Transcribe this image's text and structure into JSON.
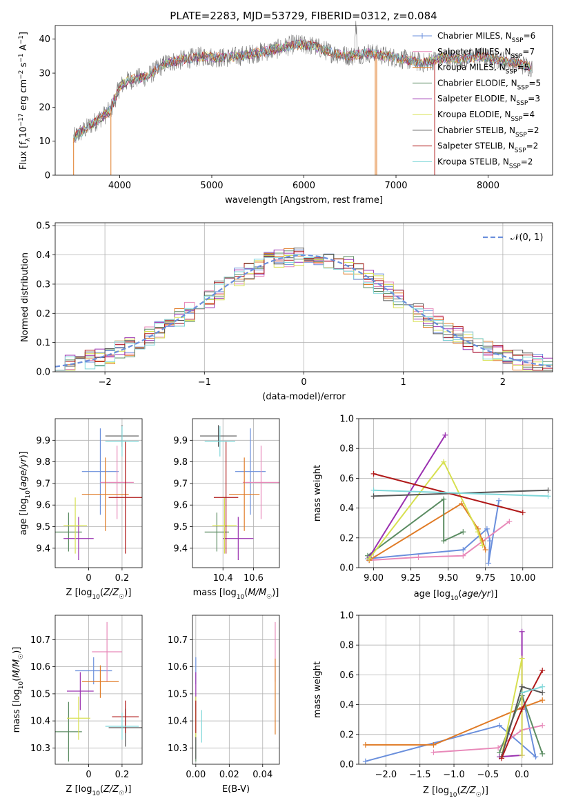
{
  "figure_title": "PLATE=2283, MJD=53729, FIBERID=0312, z=0.084",
  "colors": {
    "Chabrier MILES": "#6a8fdc",
    "Salpeter MILES": "#e889b9",
    "Kroupa MILES": "#e07b26",
    "Chabrier ELODIE": "#5b8c62",
    "Salpeter ELODIE": "#9a30b0",
    "Kroupa ELODIE": "#d7e050",
    "Chabrier STELIB": "#555555",
    "Salpeter STELIB": "#b01a1a",
    "Kroupa STELIB": "#7fd7d9"
  },
  "chart_data": [
    {
      "id": "spectrum",
      "type": "line",
      "title": "PLATE=2283, MJD=53729, FIBERID=0312, z=0.084",
      "xlabel": "wavelength [Angstrom, rest frame]",
      "ylabel": "Flux [f_λ 10^-17 erg cm^-2 s^-1 A^-1]",
      "xlim": [
        3300,
        8700
      ],
      "ylim": [
        0,
        44
      ],
      "xticks": [
        4000,
        5000,
        6000,
        7000,
        8000
      ],
      "yticks": [
        0,
        10,
        20,
        30,
        40
      ],
      "legend_position": "top-right",
      "continuum": {
        "x": [
          3500,
          3700,
          3900,
          4000,
          4100,
          4300,
          4500,
          4700,
          4900,
          5100,
          5300,
          5500,
          5700,
          5900,
          6100,
          6300,
          6500,
          6700,
          6900,
          7100,
          7300,
          7500,
          7700,
          7900,
          8100,
          8300,
          8500
        ],
        "y": [
          11,
          15,
          19,
          26,
          28,
          29,
          33,
          34,
          35,
          34.5,
          35,
          36,
          37,
          38.5,
          38,
          36,
          35,
          36,
          35,
          34,
          33,
          34.5,
          34,
          35,
          34,
          33,
          31.5
        ]
      },
      "series": [
        {
          "name": "Chabrier MILES, N_SSP=6"
        },
        {
          "name": "Salpeter MILES, N_SSP=7"
        },
        {
          "name": "Kroupa MILES, N_SSP=5"
        },
        {
          "name": "Chabrier ELODIE, N_SSP=5"
        },
        {
          "name": "Salpeter ELODIE, N_SSP=3"
        },
        {
          "name": "Kroupa ELODIE, N_SSP=4"
        },
        {
          "name": "Chabrier STELIB, N_SSP=2"
        },
        {
          "name": "Salpeter STELIB, N_SSP=2"
        },
        {
          "name": "Kroupa STELIB, N_SSP=2"
        }
      ],
      "legend_labels": [
        {
          "base": "Chabrier MILES, N",
          "sub": "SSP",
          "tail": "=6"
        },
        {
          "base": "Salpeter MILES, N",
          "sub": "SSP",
          "tail": "=7"
        },
        {
          "base": "Kroupa MILES, N",
          "sub": "SSP",
          "tail": "=5"
        },
        {
          "base": "Chabrier ELODIE, N",
          "sub": "SSP",
          "tail": "=5"
        },
        {
          "base": "Salpeter ELODIE, N",
          "sub": "SSP",
          "tail": "=3"
        },
        {
          "base": "Kroupa ELODIE, N",
          "sub": "SSP",
          "tail": "=4"
        },
        {
          "base": "Chabrier STELIB, N",
          "sub": "SSP",
          "tail": "=2"
        },
        {
          "base": "Salpeter STELIB, N",
          "sub": "SSP",
          "tail": "=2"
        },
        {
          "base": "Kroupa STELIB, N",
          "sub": "SSP",
          "tail": "=2"
        }
      ]
    },
    {
      "id": "residuals",
      "type": "histogram",
      "xlabel": "(data-model)/error",
      "ylabel": "Normed distribution",
      "xlim": [
        -2.5,
        2.5
      ],
      "ylim": [
        0,
        0.51
      ],
      "xticks": [
        -2,
        -1,
        0,
        1,
        2
      ],
      "yticks": [
        0.0,
        0.1,
        0.2,
        0.3,
        0.4,
        0.5
      ],
      "ytick_labels": [
        "0.0",
        "0.1",
        "0.2",
        "0.3",
        "0.4",
        "0.5"
      ],
      "grid": true,
      "bin_width": 0.1,
      "reference": {
        "name": "N(0,1)",
        "label": "𝒩(0, 1)",
        "style": "dashed",
        "color": "#6a8fdc"
      },
      "legend_position": "top-right"
    },
    {
      "id": "age_vs_Z",
      "type": "scatter",
      "xlabel": "Z [log10(Z/Z☉)]",
      "ylabel": "age [log10(age/yr)]",
      "xlim": [
        -0.2,
        0.32
      ],
      "ylim": [
        9.31,
        10.0
      ],
      "xticks": [
        0.0,
        0.2
      ],
      "yticks": [
        9.4,
        9.5,
        9.6,
        9.7,
        9.8,
        9.9
      ],
      "grid": true,
      "points": [
        {
          "series": "Chabrier MILES",
          "x": 0.07,
          "xerr": 0.11,
          "y": 9.755,
          "yerr": 0.2
        },
        {
          "series": "Salpeter MILES",
          "x": 0.17,
          "xerr": 0.1,
          "y": 9.705,
          "yerr": 0.17
        },
        {
          "series": "Kroupa MILES",
          "x": 0.1,
          "xerr": 0.14,
          "y": 9.65,
          "yerr": 0.17
        },
        {
          "series": "Chabrier ELODIE",
          "x": -0.12,
          "xerr": 0.08,
          "y": 9.475,
          "yerr": 0.09
        },
        {
          "series": "Salpeter ELODIE",
          "x": -0.06,
          "xerr": 0.09,
          "y": 9.445,
          "yerr": 0.1
        },
        {
          "series": "Kroupa ELODIE",
          "x": -0.08,
          "xerr": 0.07,
          "y": 9.505,
          "yerr": 0.13
        },
        {
          "series": "Chabrier STELIB",
          "x": 0.2,
          "xerr": 0.1,
          "y": 9.92,
          "yerr": 0.05
        },
        {
          "series": "Salpeter STELIB",
          "x": 0.22,
          "xerr": 0.1,
          "y": 9.635,
          "yerr": 0.26
        },
        {
          "series": "Kroupa STELIB",
          "x": 0.2,
          "xerr": 0.1,
          "y": 9.895,
          "yerr": 0.07
        }
      ]
    },
    {
      "id": "age_vs_mass",
      "type": "scatter",
      "xlabel": "mass [log10(M/M☉)]",
      "ylabel": "",
      "xlim": [
        10.2,
        10.77
      ],
      "ylim": [
        9.31,
        10.0
      ],
      "xticks": [
        10.4,
        10.6
      ],
      "yticks": [
        9.4,
        9.5,
        9.6,
        9.7,
        9.8,
        9.9
      ],
      "grid": true,
      "points": [
        {
          "series": "Chabrier MILES",
          "x": 10.58,
          "xerr": 0.1,
          "y": 9.755,
          "yerr": 0.2
        },
        {
          "series": "Salpeter MILES",
          "x": 10.65,
          "xerr": 0.12,
          "y": 9.705,
          "yerr": 0.17
        },
        {
          "series": "Kroupa MILES",
          "x": 10.54,
          "xerr": 0.1,
          "y": 9.65,
          "yerr": 0.17
        },
        {
          "series": "Chabrier ELODIE",
          "x": 10.36,
          "xerr": 0.08,
          "y": 9.475,
          "yerr": 0.09
        },
        {
          "series": "Salpeter ELODIE",
          "x": 10.5,
          "xerr": 0.1,
          "y": 9.445,
          "yerr": 0.1
        },
        {
          "series": "Kroupa ELODIE",
          "x": 10.41,
          "xerr": 0.08,
          "y": 9.505,
          "yerr": 0.13
        },
        {
          "series": "Chabrier STELIB",
          "x": 10.37,
          "xerr": 0.12,
          "y": 9.92,
          "yerr": 0.05
        },
        {
          "series": "Salpeter STELIB",
          "x": 10.42,
          "xerr": 0.08,
          "y": 9.635,
          "yerr": 0.26
        },
        {
          "series": "Kroupa STELIB",
          "x": 10.38,
          "xerr": 0.1,
          "y": 9.895,
          "yerr": 0.07
        }
      ]
    },
    {
      "id": "mass_weight_vs_age",
      "type": "line",
      "xlabel": "age [log10(age/yr)]",
      "ylabel": "mass weight",
      "xlim": [
        8.9,
        10.2
      ],
      "ylim": [
        0,
        1
      ],
      "xticks": [
        9.0,
        9.25,
        9.5,
        9.75,
        10.0
      ],
      "xtick_labels": [
        "9.00",
        "9.25",
        "9.50",
        "9.75",
        "10.00"
      ],
      "yticks": [
        0.0,
        0.2,
        0.4,
        0.6,
        0.8,
        1.0
      ],
      "ytick_labels": [
        "0.0",
        "0.2",
        "0.4",
        "0.6",
        "0.8",
        "1.0"
      ],
      "grid": true,
      "series": [
        {
          "series": "Chabrier MILES",
          "x": [
            8.96,
            9.6,
            9.76,
            9.78,
            9.77,
            9.84
          ],
          "y": [
            0.06,
            0.12,
            0.26,
            0.18,
            0.03,
            0.45
          ]
        },
        {
          "series": "Salpeter MILES",
          "x": [
            8.97,
            9.3,
            9.6,
            9.91
          ],
          "y": [
            0.05,
            0.07,
            0.08,
            0.31
          ]
        },
        {
          "series": "Kroupa MILES",
          "x": [
            8.97,
            9.59,
            9.7,
            9.75,
            9.73
          ],
          "y": [
            0.05,
            0.43,
            0.26,
            0.12,
            0.18
          ]
        },
        {
          "series": "Chabrier ELODIE",
          "x": [
            8.96,
            9.47,
            9.47,
            9.6
          ],
          "y": [
            0.08,
            0.46,
            0.18,
            0.24
          ]
        },
        {
          "series": "Salpeter ELODIE",
          "x": [
            8.97,
            9.48
          ],
          "y": [
            0.07,
            0.89
          ]
        },
        {
          "series": "Kroupa ELODIE",
          "x": [
            8.97,
            9.47,
            9.7,
            9.73
          ],
          "y": [
            0.06,
            0.71,
            0.24,
            0.15
          ]
        },
        {
          "series": "Chabrier STELIB",
          "x": [
            9.0,
            10.17
          ],
          "y": [
            0.48,
            0.52
          ]
        },
        {
          "series": "Salpeter STELIB",
          "x": [
            9.0,
            10.0
          ],
          "y": [
            0.63,
            0.37
          ]
        },
        {
          "series": "Kroupa STELIB",
          "x": [
            9.0,
            10.17
          ],
          "y": [
            0.52,
            0.48
          ]
        }
      ]
    },
    {
      "id": "mass_vs_Z",
      "type": "scatter",
      "xlabel": "Z [log10(Z/Z☉)]",
      "ylabel": "mass [log10(M/M☉)]",
      "xlim": [
        -0.2,
        0.32
      ],
      "ylim": [
        10.24,
        10.79
      ],
      "xticks": [
        0.0,
        0.2
      ],
      "yticks": [
        10.3,
        10.4,
        10.5,
        10.6,
        10.7
      ],
      "grid": true,
      "points": [
        {
          "series": "Chabrier MILES",
          "x": 0.03,
          "xerr": 0.11,
          "y": 10.585,
          "yerr": 0.05
        },
        {
          "series": "Salpeter MILES",
          "x": 0.11,
          "xerr": 0.09,
          "y": 10.655,
          "yerr": 0.11
        },
        {
          "series": "Kroupa MILES",
          "x": 0.07,
          "xerr": 0.11,
          "y": 10.545,
          "yerr": 0.06
        },
        {
          "series": "Chabrier ELODIE",
          "x": -0.12,
          "xerr": 0.08,
          "y": 10.36,
          "yerr": 0.11
        },
        {
          "series": "Salpeter ELODIE",
          "x": -0.05,
          "xerr": 0.08,
          "y": 10.51,
          "yerr": 0.07
        },
        {
          "series": "Kroupa ELODIE",
          "x": -0.06,
          "xerr": 0.07,
          "y": 10.41,
          "yerr": 0.08
        },
        {
          "series": "Chabrier STELIB",
          "x": 0.22,
          "xerr": 0.1,
          "y": 10.375,
          "yerr": 0.07
        },
        {
          "series": "Salpeter STELIB",
          "x": 0.22,
          "xerr": 0.08,
          "y": 10.415,
          "yerr": 0.06
        },
        {
          "series": "Kroupa STELIB",
          "x": 0.2,
          "xerr": 0.1,
          "y": 10.38,
          "yerr": 0.05
        }
      ]
    },
    {
      "id": "mass_vs_ebv",
      "type": "scatter",
      "xlabel": "E(B-V)",
      "ylabel": "",
      "xlim": [
        -0.002,
        0.05
      ],
      "ylim": [
        10.24,
        10.79
      ],
      "xticks": [
        0.0,
        0.02,
        0.04
      ],
      "xtick_labels": [
        "0.00",
        "0.02",
        "0.04"
      ],
      "yticks": [
        10.3,
        10.4,
        10.5,
        10.6,
        10.7
      ],
      "grid": true,
      "points": [
        {
          "series": "Chabrier MILES",
          "x": 0.0,
          "xerr": 0.0,
          "y": 10.585,
          "yerr": 0.05
        },
        {
          "series": "Salpeter MILES",
          "x": 0.0475,
          "xerr": 0.0,
          "y": 10.655,
          "yerr": 0.11
        },
        {
          "series": "Kroupa MILES",
          "x": 0.0475,
          "xerr": 0.0,
          "y": 10.49,
          "yerr": 0.14
        },
        {
          "series": "Chabrier ELODIE",
          "x": 0.0,
          "xerr": 0.0,
          "y": 10.36,
          "yerr": 0.11
        },
        {
          "series": "Salpeter ELODIE",
          "x": 0.0,
          "xerr": 0.0,
          "y": 10.51,
          "yerr": 0.07
        },
        {
          "series": "Kroupa ELODIE",
          "x": 0.0,
          "xerr": 0.0,
          "y": 10.41,
          "yerr": 0.08
        },
        {
          "series": "Chabrier STELIB",
          "x": 0.0,
          "xerr": 0.0,
          "y": 10.3,
          "yerr": 0.04
        },
        {
          "series": "Salpeter STELIB",
          "x": 0.0,
          "xerr": 0.0,
          "y": 10.415,
          "yerr": 0.06
        },
        {
          "series": "Kroupa STELIB",
          "x": 0.0035,
          "xerr": 0.0,
          "y": 10.38,
          "yerr": 0.06
        }
      ]
    },
    {
      "id": "mass_weight_vs_Z",
      "type": "line",
      "xlabel": "Z [log10(Z/Z☉)]",
      "ylabel": "mass weight",
      "xlim": [
        -2.4,
        0.45
      ],
      "ylim": [
        0,
        1
      ],
      "xticks": [
        -2.0,
        -1.5,
        -1.0,
        -0.5,
        0.0
      ],
      "xtick_labels": [
        "−2.0",
        "−1.5",
        "−1.0",
        "−0.5",
        "0.0"
      ],
      "yticks": [
        0.0,
        0.2,
        0.4,
        0.6,
        0.8,
        1.0
      ],
      "ytick_labels": [
        "0.0",
        "0.2",
        "0.4",
        "0.6",
        "0.8",
        "1.0"
      ],
      "grid": true,
      "series": [
        {
          "series": "Chabrier MILES",
          "x": [
            -2.3,
            -0.33,
            0.2,
            0.0
          ],
          "y": [
            0.02,
            0.26,
            0.05,
            0.48
          ]
        },
        {
          "series": "Salpeter MILES",
          "x": [
            -1.3,
            -0.35,
            0.0,
            0.3
          ],
          "y": [
            0.08,
            0.11,
            0.23,
            0.26
          ]
        },
        {
          "series": "Kroupa MILES",
          "x": [
            -2.3,
            -1.3,
            0.0,
            0.3
          ],
          "y": [
            0.13,
            0.13,
            0.38,
            0.43
          ]
        },
        {
          "series": "Chabrier ELODIE",
          "x": [
            -0.33,
            0.0,
            0.3
          ],
          "y": [
            0.08,
            0.46,
            0.07
          ]
        },
        {
          "series": "Salpeter ELODIE",
          "x": [
            -0.33,
            0.0,
            0.0
          ],
          "y": [
            0.05,
            0.06,
            0.89
          ]
        },
        {
          "series": "Kroupa ELODIE",
          "x": [
            -0.3,
            0.0,
            0.0
          ],
          "y": [
            0.05,
            0.71,
            0.06
          ]
        },
        {
          "series": "Chabrier STELIB",
          "x": [
            -0.3,
            0.0,
            0.3
          ],
          "y": [
            0.05,
            0.52,
            0.48
          ]
        },
        {
          "series": "Salpeter STELIB",
          "x": [
            -0.3,
            0.0,
            0.3
          ],
          "y": [
            0.04,
            0.37,
            0.63
          ]
        },
        {
          "series": "Kroupa STELIB",
          "x": [
            0.0,
            0.3
          ],
          "y": [
            0.48,
            0.52
          ]
        }
      ]
    }
  ]
}
